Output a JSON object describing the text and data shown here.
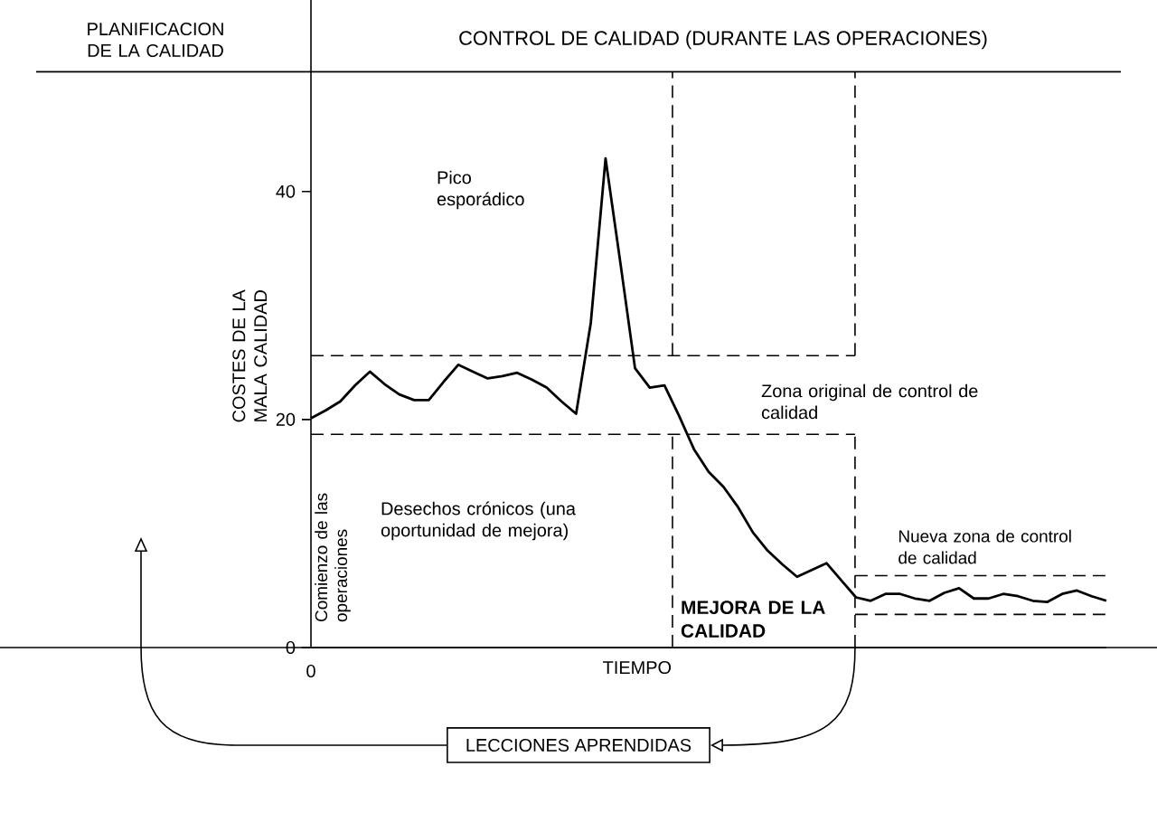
{
  "chart_data": {
    "type": "line",
    "title": "CONTROL DE CALIDAD (DURANTE LAS OPERACIONES)",
    "xlabel": "TIEMPO",
    "ylabel": "COSTES DE LA MALA CALIDAD",
    "categories": [
      null,
      null,
      null,
      null,
      null,
      null,
      null,
      null,
      null,
      null,
      null,
      null,
      null,
      null,
      null,
      null,
      null,
      null,
      null,
      null,
      null,
      null,
      null,
      null,
      null,
      null,
      null,
      null,
      null,
      null,
      null,
      null,
      null,
      null,
      null,
      null,
      null,
      null,
      null,
      null,
      null,
      null,
      null,
      null,
      null,
      null,
      null,
      null,
      null,
      null,
      null,
      null,
      null,
      null,
      null
    ],
    "values": [
      20.1,
      20.8,
      21.6,
      23.0,
      24.2,
      23.1,
      22.2,
      21.7,
      21.7,
      23.3,
      24.8,
      24.2,
      23.6,
      23.8,
      24.1,
      23.5,
      22.8,
      21.6,
      20.5,
      28.5,
      42.9,
      33.8,
      24.5,
      22.8,
      23.0,
      20.3,
      17.4,
      15.4,
      14.1,
      12.3,
      10.1,
      8.5,
      7.3,
      6.2,
      6.8,
      7.4,
      5.9,
      4.4,
      4.1,
      4.7,
      4.7,
      4.3,
      4.1,
      4.8,
      5.2,
      4.3,
      4.3,
      4.7,
      4.5,
      4.1,
      4.0,
      4.7,
      5.0,
      4.5,
      4.1
    ],
    "color": "#000000",
    "ylim": [
      0,
      56.8
    ],
    "yticks": [
      0,
      20,
      40
    ],
    "grid": false,
    "ref_lines": [
      {
        "axis": "y",
        "value": 25.6,
        "line_style": "dashed"
      },
      {
        "axis": "y",
        "value": 18.7,
        "label": "Zona original de control de calidad",
        "line_style": "dashed"
      },
      {
        "axis": "y",
        "value": 6.3,
        "label": "Nueva zona de control de calidad",
        "line_style": "dashed"
      },
      {
        "axis": "y",
        "value": 2.9,
        "line_style": "dashed"
      },
      {
        "axis": "y",
        "value": 50.5,
        "line_style": "solid"
      }
    ],
    "annotations": [
      "PLANIFICACION DE LA CALIDAD",
      "Pico esporádico",
      "Comienzo de las operaciones",
      "Desechos crónicos (una oportunidad de mejora)",
      "MEJORA DE LA CALIDAD",
      "LECCIONES APRENDIDAS",
      "0"
    ]
  }
}
